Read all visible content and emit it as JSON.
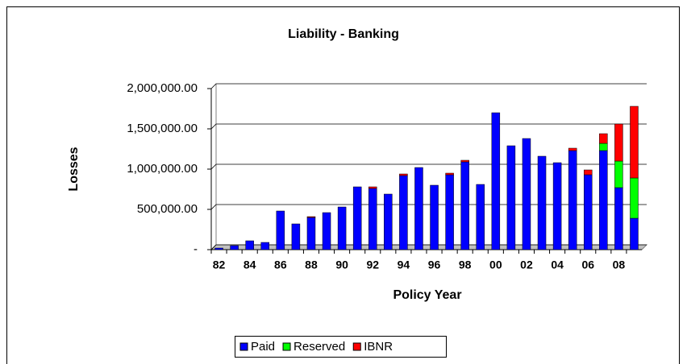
{
  "chart_data": {
    "type": "bar",
    "stacked": true,
    "title": "Liability - Banking",
    "x_label": "Policy Year",
    "y_label": "Losses",
    "categories": [
      "82",
      null,
      "84",
      null,
      "86",
      null,
      "88",
      null,
      "90",
      null,
      "92",
      null,
      "94",
      null,
      "96",
      null,
      "98",
      null,
      "00",
      null,
      "02",
      null,
      "04",
      null,
      "06",
      null,
      "08",
      null
    ],
    "series": [
      {
        "name": "Paid",
        "color": "#0000ff",
        "values": [
          20000,
          50000,
          110000,
          90000,
          480000,
          320000,
          400000,
          460000,
          530000,
          780000,
          760000,
          690000,
          920000,
          1020000,
          800000,
          930000,
          1090000,
          810000,
          1700000,
          1290000,
          1380000,
          1160000,
          1080000,
          1230000,
          930000,
          1230000,
          770000,
          390000
        ]
      },
      {
        "name": "Reserved",
        "color": "#00ff00",
        "values": [
          0,
          0,
          0,
          0,
          0,
          0,
          0,
          0,
          0,
          0,
          0,
          0,
          0,
          0,
          0,
          0,
          0,
          0,
          0,
          0,
          0,
          0,
          0,
          0,
          0,
          90000,
          330000,
          500000
        ]
      },
      {
        "name": "IBNR",
        "color": "#ff0000",
        "values": [
          0,
          0,
          0,
          0,
          0,
          0,
          10000,
          0,
          0,
          0,
          20000,
          0,
          20000,
          0,
          0,
          20000,
          20000,
          0,
          0,
          0,
          0,
          0,
          0,
          30000,
          60000,
          120000,
          460000,
          890000
        ]
      }
    ],
    "ylim": [
      0,
      2000000
    ],
    "yticks": [
      {
        "value": 0,
        "label": "-"
      },
      {
        "value": 500000,
        "label": "500,000.00"
      },
      {
        "value": 1000000,
        "label": "1,000,000.00"
      },
      {
        "value": 1500000,
        "label": "1,500,000.00"
      },
      {
        "value": 2000000,
        "label": "2,000,000.00"
      }
    ],
    "grid": true,
    "legend": "bottom"
  }
}
